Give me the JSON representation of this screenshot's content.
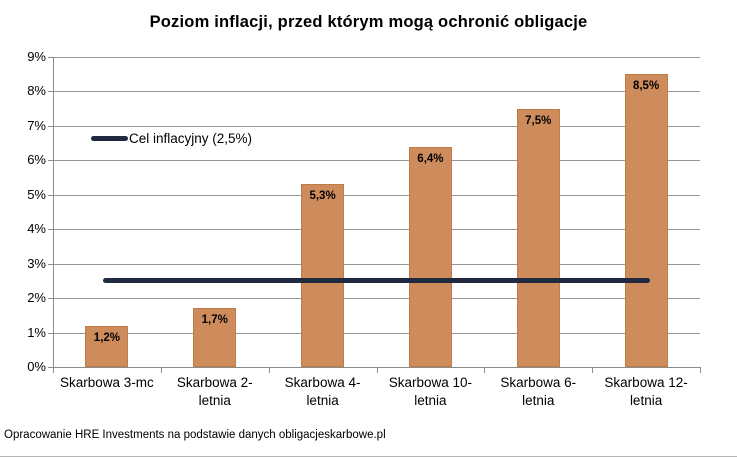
{
  "chart_data": {
    "type": "bar",
    "title": "Poziom inflacji, przed którym mogą ochronić obligacje",
    "categories": [
      "Skarbowa 3-mc",
      "Skarbowa 2-letnia",
      "Skarbowa 4-letnia",
      "Skarbowa 10-letnia",
      "Skarbowa 6-letnia",
      "Skarbowa 12-letnia"
    ],
    "category_label_lines": [
      [
        "Skarbowa 3-mc"
      ],
      [
        "Skarbowa 2-",
        "letnia"
      ],
      [
        "Skarbowa 4-",
        "letnia"
      ],
      [
        "Skarbowa 10-",
        "letnia"
      ],
      [
        "Skarbowa 6-",
        "letnia"
      ],
      [
        "Skarbowa 12-",
        "letnia"
      ]
    ],
    "values": [
      1.2,
      1.7,
      5.3,
      6.4,
      7.5,
      8.5
    ],
    "value_labels": [
      "1,2%",
      "1,7%",
      "5,3%",
      "6,4%",
      "7,5%",
      "8,5%"
    ],
    "ylim": [
      0,
      9
    ],
    "ytick_step": 1,
    "ytick_labels": [
      "0%",
      "1%",
      "2%",
      "3%",
      "4%",
      "5%",
      "6%",
      "7%",
      "8%",
      "9%"
    ],
    "grid": true,
    "legend_position": "upper-left-inside",
    "reference_line": {
      "value": 2.5,
      "label": "Cel inflacyjny (2,5%)",
      "color": "#1f2940"
    },
    "colors": {
      "bar_fill": "#ce8c5c",
      "bar_border": "#bd7b46",
      "gridline": "#969696",
      "axis": "#8c8c8c",
      "text": "#000000"
    },
    "source_note": "Opracowanie HRE Investments na podstawie danych obligacjeskarbowe.pl"
  }
}
